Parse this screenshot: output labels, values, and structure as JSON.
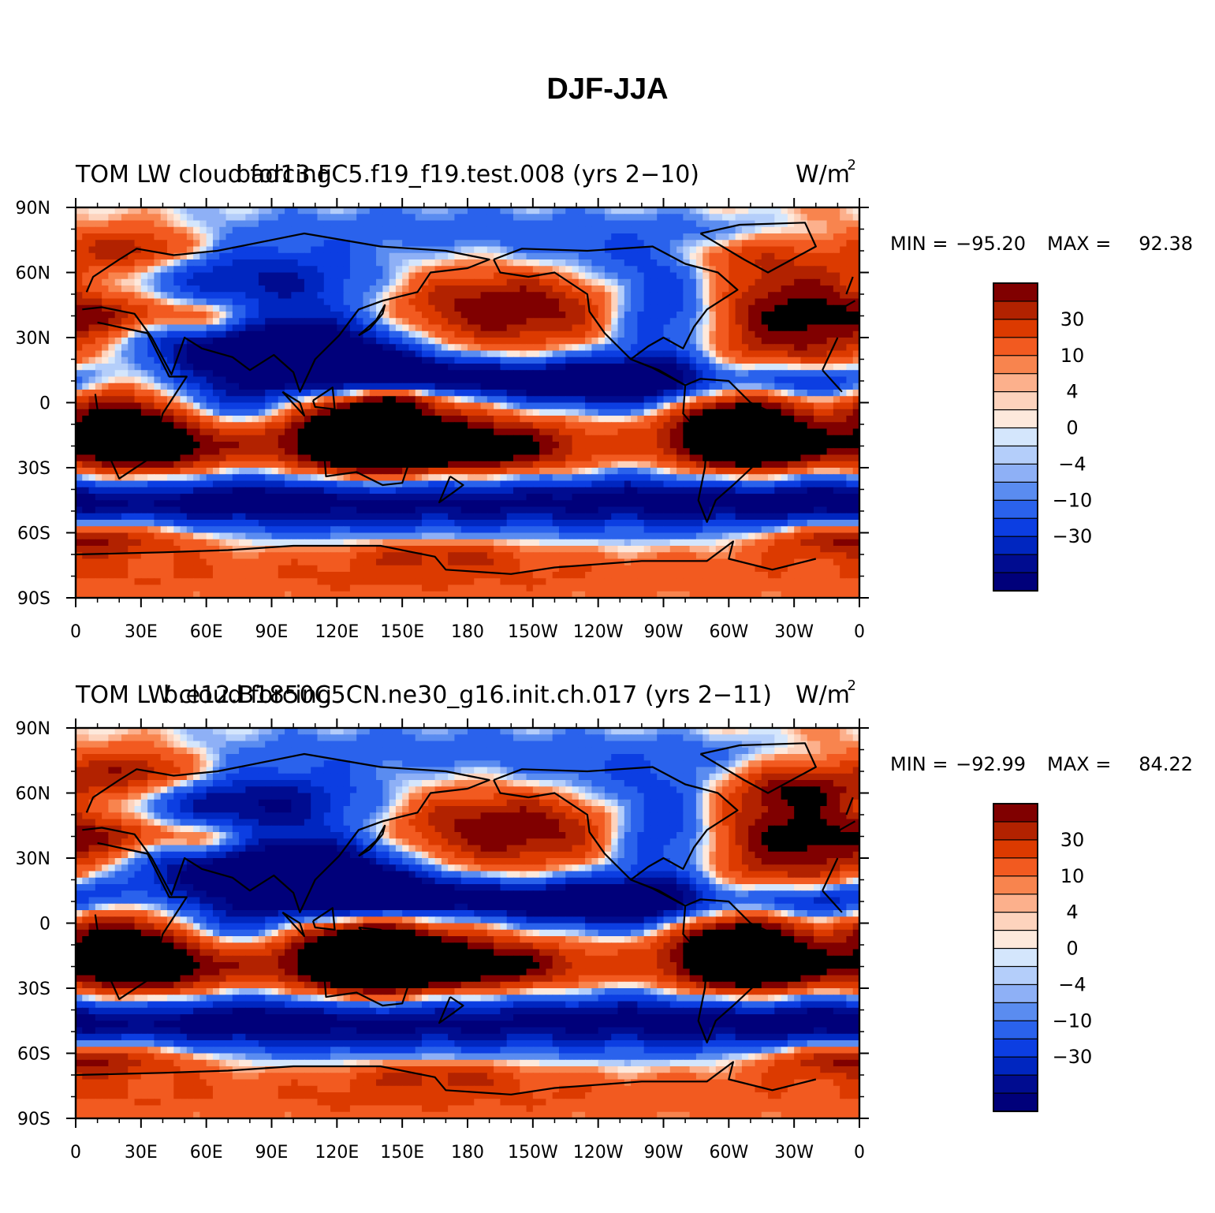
{
  "figure": {
    "title": "DJF-JJA"
  },
  "chart_data": [
    {
      "type": "heatmap",
      "title_left": "TOM LW cloud forcing",
      "title_center": "bad13.FC5.f19_f19.test.008 (yrs 2-10)",
      "units": "W/m",
      "units_sup": "2",
      "stats": {
        "min_label": "MIN =",
        "min": "-95.20",
        "max_label": "MAX =",
        "max": "92.38"
      },
      "x_ticks": [
        "0",
        "30E",
        "60E",
        "90E",
        "120E",
        "150E",
        "180",
        "150W",
        "120W",
        "90W",
        "60W",
        "30W",
        "0"
      ],
      "y_ticks": [
        "90N",
        "60N",
        "30N",
        "0",
        "30S",
        "60S",
        "90S"
      ],
      "xlim": [
        0,
        360
      ],
      "ylim": [
        -90,
        90
      ],
      "contour_levels": [
        -50,
        -40,
        -30,
        -20,
        -10,
        -6,
        -4,
        -2,
        0,
        2,
        4,
        6,
        10,
        20,
        30,
        40,
        50
      ],
      "colorbar_labels": [
        "30",
        "10",
        "4",
        "0",
        "-4",
        "-10",
        "-30"
      ]
    },
    {
      "type": "heatmap",
      "title_left": "TOM LW cloud forcing",
      "title_center": "b.e12.B1850C5CN.ne30_g16.init.ch.017 (yrs 2-11)",
      "units": "W/m",
      "units_sup": "2",
      "stats": {
        "min_label": "MIN =",
        "min": "-92.99",
        "max_label": "MAX =",
        "max": "84.22"
      },
      "x_ticks": [
        "0",
        "30E",
        "60E",
        "90E",
        "120E",
        "150E",
        "180",
        "150W",
        "120W",
        "90W",
        "60W",
        "30W",
        "0"
      ],
      "y_ticks": [
        "90N",
        "60N",
        "30N",
        "0",
        "30S",
        "60S",
        "90S"
      ],
      "xlim": [
        0,
        360
      ],
      "ylim": [
        -90,
        90
      ],
      "contour_levels": [
        -50,
        -40,
        -30,
        -20,
        -10,
        -6,
        -4,
        -2,
        0,
        2,
        4,
        6,
        10,
        20,
        30,
        40,
        50
      ],
      "colorbar_labels": [
        "30",
        "10",
        "4",
        "0",
        "-4",
        "-10",
        "-30"
      ]
    }
  ],
  "colors": {
    "palette": [
      "#800000",
      "#b22200",
      "#dc3a00",
      "#f25a20",
      "#f8844e",
      "#fcb08c",
      "#fdd3bd",
      "#fde9dc",
      "#d4e6fc",
      "#b4cefa",
      "#8eb0f6",
      "#5a8cf0",
      "#2a62ec",
      "#0c3ee2",
      "#0026c0",
      "#000c90",
      "#00007a"
    ]
  }
}
